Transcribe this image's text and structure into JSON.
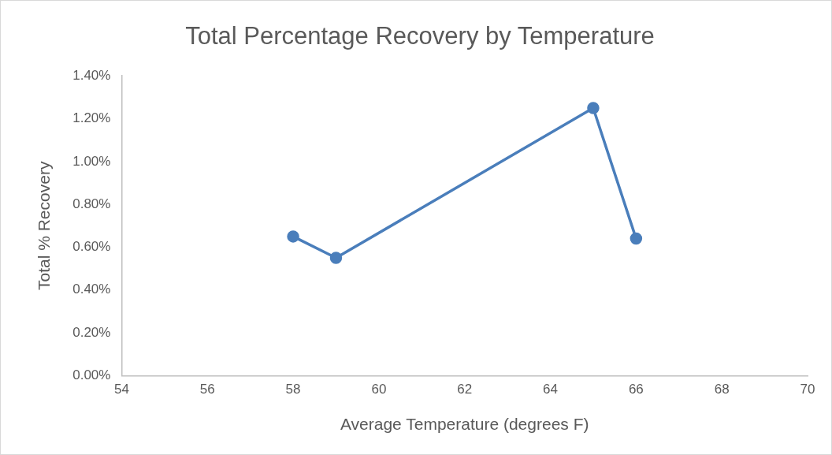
{
  "chart_data": {
    "type": "line",
    "title": "Total Percentage Recovery by Temperature",
    "xlabel": "Average Temperature (degrees F)",
    "ylabel": "Total % Recovery",
    "x": [
      58,
      59,
      65,
      66
    ],
    "series": [
      {
        "color": "#4a7ebb",
        "values": [
          0.65,
          0.55,
          1.25,
          0.64
        ]
      }
    ],
    "xlim": [
      54,
      70
    ],
    "xticks": [
      54,
      56,
      58,
      60,
      62,
      64,
      66,
      68,
      70
    ],
    "ylim": [
      0,
      1.4
    ],
    "yticks": [
      {
        "value": 0,
        "label": "0.00%"
      },
      {
        "value": 0.2,
        "label": "0.20%"
      },
      {
        "value": 0.4,
        "label": "0.40%"
      },
      {
        "value": 0.6,
        "label": "0.60%"
      },
      {
        "value": 0.8,
        "label": "0.80%"
      },
      {
        "value": 1.0,
        "label": "1.00%"
      },
      {
        "value": 1.2,
        "label": "1.20%"
      },
      {
        "value": 1.4,
        "label": "1.40%"
      }
    ],
    "grid": false,
    "legend": false,
    "marker": "circle",
    "line_style": "solid"
  }
}
